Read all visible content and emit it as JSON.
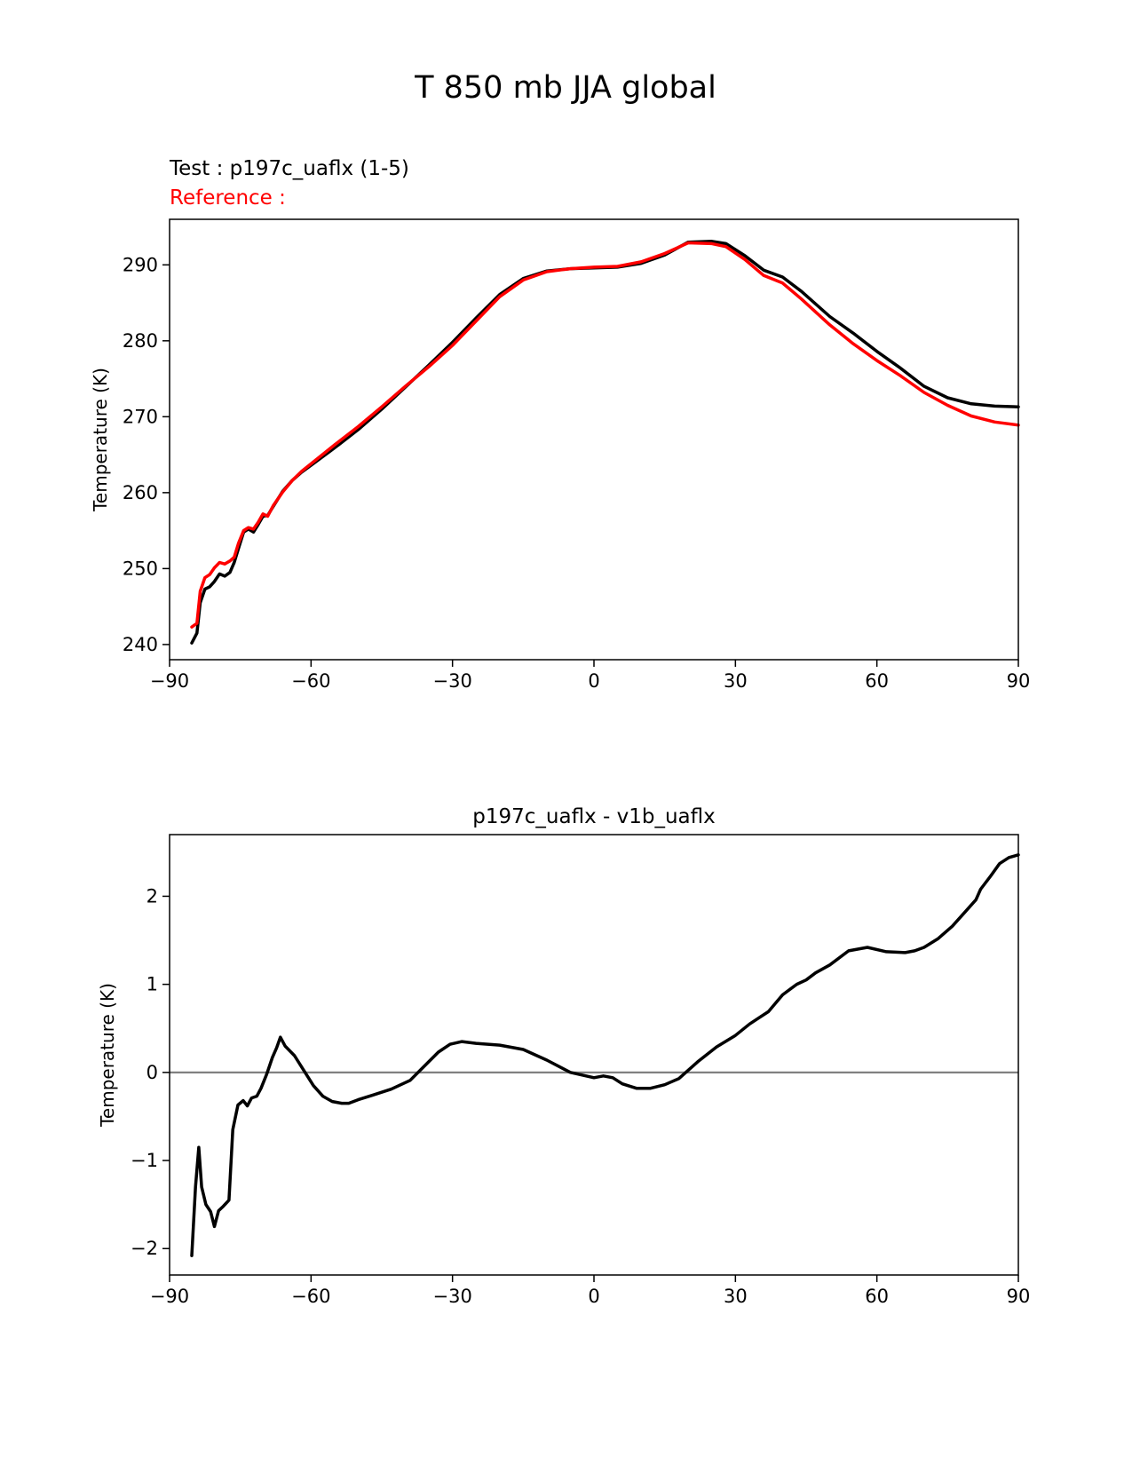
{
  "figure": {
    "suptitle": "T 850 mb JJA global"
  },
  "chart_data": [
    {
      "type": "line",
      "test_label": "Test : p197c_uaflx (1-5)",
      "reference_label": "Reference :",
      "ylabel": "Temperature (K)",
      "xlabel": "",
      "xlim": [
        -90,
        90
      ],
      "ylim": [
        238,
        296
      ],
      "xticks": [
        -90,
        -60,
        -30,
        0,
        30,
        60,
        90
      ],
      "xtick_labels": [
        "−90",
        "−60",
        "−30",
        "0",
        "30",
        "60",
        "90"
      ],
      "yticks": [
        240,
        250,
        260,
        270,
        280,
        290
      ],
      "ytick_labels": [
        "240",
        "250",
        "260",
        "270",
        "280",
        "290"
      ],
      "grid": false,
      "series": [
        {
          "color": "#000000",
          "x": [
            -85.3,
            -84.2,
            -83.5,
            -82.5,
            -81.5,
            -80.5,
            -79.4,
            -78.3,
            -77.2,
            -76.3,
            -75.4,
            -74.3,
            -73.3,
            -72.2,
            -71.2,
            -70.2,
            -69.2,
            -68.0,
            -66.0,
            -64.0,
            -62.0,
            -60.0,
            -55.0,
            -50.0,
            -45.0,
            -40.0,
            -35.0,
            -30.0,
            -25.0,
            -20.0,
            -15.0,
            -10.0,
            -5.0,
            0.0,
            5.0,
            10.0,
            15.0,
            20.0,
            25.0,
            28.0,
            32.0,
            36.0,
            40.0,
            44.0,
            50.0,
            55.0,
            60.0,
            65.0,
            70.0,
            75.0,
            80.0,
            85.0,
            90.0
          ],
          "y": [
            240.2,
            241.5,
            245.5,
            247.3,
            247.6,
            248.3,
            249.3,
            249.0,
            249.5,
            250.8,
            252.6,
            254.8,
            255.2,
            254.8,
            255.8,
            256.9,
            257.0,
            258.2,
            260.2,
            261.6,
            262.7,
            263.6,
            265.9,
            268.3,
            271.0,
            273.9,
            276.8,
            279.8,
            283.0,
            286.1,
            288.2,
            289.2,
            289.5,
            289.6,
            289.7,
            290.2,
            291.3,
            293.0,
            293.1,
            292.8,
            291.2,
            289.3,
            288.4,
            286.5,
            283.2,
            281.0,
            278.6,
            276.4,
            274.0,
            272.5,
            271.7,
            271.4,
            271.3
          ]
        },
        {
          "color": "#ff0000",
          "x": [
            -85.3,
            -84.2,
            -83.5,
            -82.5,
            -81.5,
            -80.5,
            -79.4,
            -78.3,
            -77.2,
            -76.3,
            -75.4,
            -74.3,
            -73.3,
            -72.2,
            -71.2,
            -70.2,
            -69.2,
            -68.0,
            -66.0,
            -64.0,
            -62.0,
            -60.0,
            -55.0,
            -50.0,
            -45.0,
            -40.0,
            -35.0,
            -30.0,
            -25.0,
            -20.0,
            -15.0,
            -10.0,
            -5.0,
            0.0,
            5.0,
            10.0,
            15.0,
            20.0,
            25.0,
            28.0,
            32.0,
            36.0,
            40.0,
            44.0,
            50.0,
            55.0,
            60.0,
            65.0,
            70.0,
            75.0,
            80.0,
            85.0,
            90.0
          ],
          "y": [
            242.3,
            242.8,
            247.0,
            248.8,
            249.2,
            250.1,
            250.8,
            250.6,
            251.0,
            251.5,
            253.3,
            255.0,
            255.4,
            255.2,
            256.1,
            257.2,
            256.9,
            258.3,
            260.1,
            261.6,
            262.8,
            263.8,
            266.3,
            268.7,
            271.3,
            274.0,
            276.6,
            279.4,
            282.6,
            285.8,
            288.0,
            289.1,
            289.5,
            289.7,
            289.8,
            290.4,
            291.5,
            292.9,
            292.8,
            292.4,
            290.7,
            288.6,
            287.6,
            285.5,
            282.1,
            279.6,
            277.4,
            275.4,
            273.2,
            271.5,
            270.1,
            269.3,
            268.9
          ]
        }
      ]
    },
    {
      "type": "line",
      "title": "p197c_uaflx - v1b_uaflx",
      "ylabel": "Temperature (K)",
      "xlabel": "",
      "xlim": [
        -90,
        90
      ],
      "ylim": [
        -2.3,
        2.7
      ],
      "xticks": [
        -90,
        -60,
        -30,
        0,
        30,
        60,
        90
      ],
      "xtick_labels": [
        "−90",
        "−60",
        "−30",
        "0",
        "30",
        "60",
        "90"
      ],
      "yticks": [
        -2,
        -1,
        0,
        1,
        2
      ],
      "ytick_labels": [
        "−2",
        "−1",
        "0",
        "1",
        "2"
      ],
      "grid": false,
      "zero_line": {
        "value": 0,
        "color": "#808080"
      },
      "series": [
        {
          "color": "#000000",
          "x": [
            -85.3,
            -84.5,
            -83.8,
            -83.2,
            -82.3,
            -81.3,
            -80.5,
            -79.6,
            -78.6,
            -77.4,
            -76.6,
            -75.5,
            -74.4,
            -73.5,
            -72.6,
            -71.5,
            -70.6,
            -69.4,
            -68.2,
            -67.3,
            -66.5,
            -65.5,
            -63.5,
            -61.5,
            -59.5,
            -57.5,
            -55.5,
            -53.5,
            -52.0,
            -50.0,
            -47.0,
            -43.0,
            -39.0,
            -36.0,
            -33.0,
            -30.5,
            -28.0,
            -25.0,
            -20.0,
            -15.0,
            -10.0,
            -5.0,
            0.0,
            2.0,
            4.0,
            6.0,
            9.0,
            12.0,
            15.0,
            18.0,
            22.0,
            26.0,
            30.0,
            33.0,
            35.0,
            37.0,
            40.0,
            43.0,
            45.0,
            47.0,
            50.0,
            54.0,
            58.0,
            62.0,
            66.0,
            68.0,
            70.0,
            73.0,
            76.0,
            79.0,
            81.0,
            82.0,
            84.0,
            86.0,
            88.0,
            90.0
          ],
          "y": [
            -2.08,
            -1.3,
            -0.85,
            -1.3,
            -1.5,
            -1.58,
            -1.75,
            -1.57,
            -1.52,
            -1.45,
            -0.65,
            -0.37,
            -0.32,
            -0.38,
            -0.29,
            -0.27,
            -0.18,
            -0.02,
            0.17,
            0.28,
            0.4,
            0.3,
            0.19,
            0.02,
            -0.15,
            -0.27,
            -0.33,
            -0.35,
            -0.35,
            -0.31,
            -0.26,
            -0.19,
            -0.09,
            0.07,
            0.23,
            0.32,
            0.35,
            0.33,
            0.31,
            0.26,
            0.14,
            0.0,
            -0.06,
            -0.04,
            -0.06,
            -0.13,
            -0.18,
            -0.18,
            -0.14,
            -0.07,
            0.12,
            0.29,
            0.42,
            0.55,
            0.62,
            0.69,
            0.88,
            1.0,
            1.05,
            1.13,
            1.22,
            1.38,
            1.42,
            1.37,
            1.36,
            1.38,
            1.42,
            1.52,
            1.66,
            1.84,
            1.96,
            2.08,
            2.22,
            2.37,
            2.44,
            2.47
          ]
        }
      ]
    }
  ]
}
